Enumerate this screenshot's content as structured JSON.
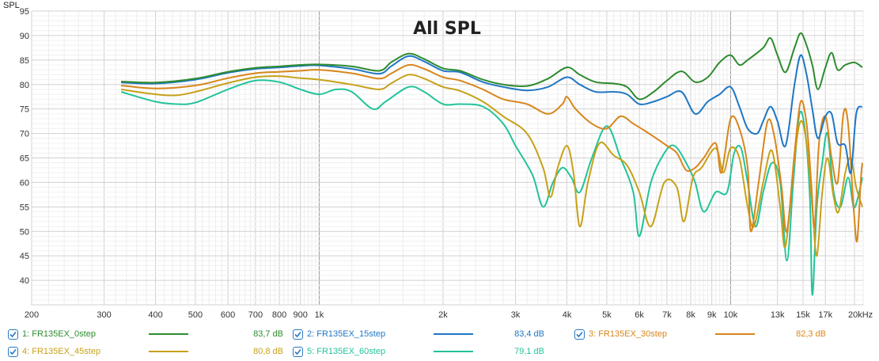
{
  "chart_data": {
    "type": "line",
    "title": "All SPL",
    "ylabel": "SPL",
    "xlabel": "",
    "xscale": "log",
    "xlim": [
      200,
      21000
    ],
    "ylim": [
      35,
      95
    ],
    "x_ticks": [
      {
        "value": 200,
        "label": "200"
      },
      {
        "value": 300,
        "label": "300"
      },
      {
        "value": 400,
        "label": "400"
      },
      {
        "value": 500,
        "label": "500"
      },
      {
        "value": 600,
        "label": "600"
      },
      {
        "value": 700,
        "label": "700"
      },
      {
        "value": 800,
        "label": "800"
      },
      {
        "value": 900,
        "label": "900"
      },
      {
        "value": 1000,
        "label": "1k"
      },
      {
        "value": 2000,
        "label": "2k"
      },
      {
        "value": 3000,
        "label": "3k"
      },
      {
        "value": 4000,
        "label": "4k"
      },
      {
        "value": 5000,
        "label": "5k"
      },
      {
        "value": 6000,
        "label": "6k"
      },
      {
        "value": 7000,
        "label": "7k"
      },
      {
        "value": 8000,
        "label": "8k"
      },
      {
        "value": 9000,
        "label": "9k"
      },
      {
        "value": 10000,
        "label": "10k"
      },
      {
        "value": 13000,
        "label": "13k"
      },
      {
        "value": 15000,
        "label": "15k"
      },
      {
        "value": 17000,
        "label": "17k"
      },
      {
        "value": 20000,
        "label": "20kHz"
      }
    ],
    "y_ticks": [
      40,
      45,
      50,
      55,
      60,
      65,
      70,
      75,
      80,
      85,
      90,
      95
    ],
    "series": [
      {
        "name": "1: FR135EX_0step",
        "color": "#2e8b2e",
        "value_label": "83,7 dB",
        "points": [
          [
            330,
            80.6
          ],
          [
            400,
            80.4
          ],
          [
            500,
            81.2
          ],
          [
            600,
            82.6
          ],
          [
            700,
            83.4
          ],
          [
            800,
            83.7
          ],
          [
            900,
            84.0
          ],
          [
            1000,
            84.1
          ],
          [
            1200,
            83.7
          ],
          [
            1400,
            82.8
          ],
          [
            1500,
            84.6
          ],
          [
            1650,
            86.3
          ],
          [
            1800,
            85.2
          ],
          [
            2000,
            83.3
          ],
          [
            2200,
            82.8
          ],
          [
            2500,
            81.0
          ],
          [
            2800,
            80.0
          ],
          [
            3200,
            79.7
          ],
          [
            3600,
            81.2
          ],
          [
            4000,
            83.5
          ],
          [
            4300,
            82.0
          ],
          [
            4700,
            80.5
          ],
          [
            5200,
            80.2
          ],
          [
            5600,
            79.5
          ],
          [
            6000,
            77.0
          ],
          [
            6500,
            78.5
          ],
          [
            7000,
            80.8
          ],
          [
            7600,
            82.7
          ],
          [
            8200,
            80.5
          ],
          [
            8800,
            81.5
          ],
          [
            9400,
            84.5
          ],
          [
            10000,
            86.0
          ],
          [
            10500,
            84.0
          ],
          [
            11000,
            85.0
          ],
          [
            12000,
            87.5
          ],
          [
            12500,
            89.5
          ],
          [
            13000,
            86.0
          ],
          [
            13600,
            82.5
          ],
          [
            14300,
            87.5
          ],
          [
            14800,
            90.5
          ],
          [
            15300,
            88.0
          ],
          [
            15800,
            84.0
          ],
          [
            16300,
            79.0
          ],
          [
            17000,
            83.5
          ],
          [
            17600,
            86.5
          ],
          [
            18200,
            83.0
          ],
          [
            19000,
            84.0
          ],
          [
            20000,
            84.5
          ],
          [
            21000,
            83.5
          ]
        ]
      },
      {
        "name": "2: FR135EX_15step",
        "color": "#1f77c4",
        "value_label": "83,4 dB",
        "points": [
          [
            330,
            80.4
          ],
          [
            400,
            80.2
          ],
          [
            500,
            81.0
          ],
          [
            600,
            82.4
          ],
          [
            700,
            83.2
          ],
          [
            800,
            83.5
          ],
          [
            900,
            83.8
          ],
          [
            1000,
            83.9
          ],
          [
            1200,
            83.2
          ],
          [
            1400,
            82.2
          ],
          [
            1500,
            83.8
          ],
          [
            1650,
            85.8
          ],
          [
            1800,
            84.7
          ],
          [
            2000,
            82.8
          ],
          [
            2200,
            82.5
          ],
          [
            2500,
            80.5
          ],
          [
            2800,
            79.5
          ],
          [
            3200,
            78.8
          ],
          [
            3600,
            79.5
          ],
          [
            4000,
            81.5
          ],
          [
            4300,
            80.0
          ],
          [
            4700,
            78.5
          ],
          [
            5200,
            78.5
          ],
          [
            5600,
            78.0
          ],
          [
            6000,
            76.0
          ],
          [
            6500,
            76.5
          ],
          [
            7000,
            77.5
          ],
          [
            7600,
            78.5
          ],
          [
            8200,
            74.0
          ],
          [
            8800,
            76.5
          ],
          [
            9400,
            78.0
          ],
          [
            10000,
            79.5
          ],
          [
            10500,
            75.5
          ],
          [
            11000,
            71.0
          ],
          [
            11600,
            70.0
          ],
          [
            12000,
            72.5
          ],
          [
            12500,
            75.5
          ],
          [
            13000,
            72.5
          ],
          [
            13600,
            67.5
          ],
          [
            14300,
            80.0
          ],
          [
            14800,
            86.0
          ],
          [
            15300,
            82.0
          ],
          [
            15800,
            75.0
          ],
          [
            16300,
            69.0
          ],
          [
            17000,
            73.5
          ],
          [
            17600,
            74.0
          ],
          [
            18200,
            68.0
          ],
          [
            19000,
            67.5
          ],
          [
            19600,
            62.0
          ],
          [
            20200,
            74.0
          ],
          [
            21000,
            75.5
          ]
        ]
      },
      {
        "name": "3: FR135EX_30step",
        "color": "#d8861b",
        "value_label": "82,3 dB",
        "points": [
          [
            330,
            79.8
          ],
          [
            400,
            79.2
          ],
          [
            500,
            79.8
          ],
          [
            600,
            81.3
          ],
          [
            700,
            82.3
          ],
          [
            800,
            82.6
          ],
          [
            900,
            82.8
          ],
          [
            1000,
            83.0
          ],
          [
            1200,
            82.3
          ],
          [
            1400,
            81.2
          ],
          [
            1500,
            82.3
          ],
          [
            1650,
            84.0
          ],
          [
            1800,
            83.2
          ],
          [
            2000,
            81.5
          ],
          [
            2200,
            80.8
          ],
          [
            2500,
            79.0
          ],
          [
            2800,
            77.0
          ],
          [
            3200,
            76.0
          ],
          [
            3600,
            74.0
          ],
          [
            3900,
            76.0
          ],
          [
            4000,
            77.5
          ],
          [
            4200,
            75.0
          ],
          [
            4600,
            72.0
          ],
          [
            5000,
            71.0
          ],
          [
            5400,
            73.5
          ],
          [
            5800,
            72.0
          ],
          [
            6200,
            70.5
          ],
          [
            6600,
            69.0
          ],
          [
            7000,
            67.5
          ],
          [
            7400,
            66.0
          ],
          [
            7800,
            62.5
          ],
          [
            8200,
            63.0
          ],
          [
            8600,
            65.0
          ],
          [
            9200,
            68.0
          ],
          [
            9500,
            62.0
          ],
          [
            10000,
            73.0
          ],
          [
            10500,
            71.0
          ],
          [
            11000,
            63.0
          ],
          [
            11200,
            50.0
          ],
          [
            11700,
            60.0
          ],
          [
            12300,
            72.5
          ],
          [
            12800,
            69.0
          ],
          [
            13300,
            59.0
          ],
          [
            13700,
            50.0
          ],
          [
            14300,
            66.0
          ],
          [
            14800,
            76.5
          ],
          [
            15300,
            72.0
          ],
          [
            15700,
            60.0
          ],
          [
            16000,
            51.0
          ],
          [
            16400,
            68.0
          ],
          [
            17000,
            73.5
          ],
          [
            17600,
            65.0
          ],
          [
            18200,
            60.0
          ],
          [
            18800,
            74.0
          ],
          [
            19300,
            72.0
          ],
          [
            19900,
            55.0
          ],
          [
            20300,
            48.0
          ],
          [
            20700,
            60.0
          ],
          [
            21000,
            64.0
          ]
        ]
      },
      {
        "name": "4: FR135EX_45step",
        "color": "#c7a118",
        "value_label": "80,8 dB",
        "points": [
          [
            330,
            79.0
          ],
          [
            400,
            78.0
          ],
          [
            450,
            77.8
          ],
          [
            500,
            78.5
          ],
          [
            600,
            80.3
          ],
          [
            700,
            81.5
          ],
          [
            800,
            81.7
          ],
          [
            900,
            81.3
          ],
          [
            1000,
            81.0
          ],
          [
            1200,
            80.0
          ],
          [
            1400,
            79.0
          ],
          [
            1500,
            80.3
          ],
          [
            1650,
            82.0
          ],
          [
            1800,
            81.2
          ],
          [
            2000,
            79.5
          ],
          [
            2200,
            78.7
          ],
          [
            2500,
            76.5
          ],
          [
            2800,
            73.5
          ],
          [
            3200,
            70.0
          ],
          [
            3500,
            63.0
          ],
          [
            3650,
            57.0
          ],
          [
            3800,
            63.0
          ],
          [
            4000,
            67.5
          ],
          [
            4150,
            62.0
          ],
          [
            4300,
            51.0
          ],
          [
            4500,
            60.0
          ],
          [
            4800,
            68.0
          ],
          [
            5200,
            65.5
          ],
          [
            5600,
            63.5
          ],
          [
            6000,
            58.0
          ],
          [
            6400,
            51.0
          ],
          [
            6900,
            60.0
          ],
          [
            7400,
            59.0
          ],
          [
            7700,
            52.0
          ],
          [
            8100,
            61.0
          ],
          [
            8500,
            63.0
          ],
          [
            9200,
            67.0
          ],
          [
            9600,
            62.0
          ],
          [
            10000,
            67.0
          ],
          [
            10500,
            65.0
          ],
          [
            11000,
            55.0
          ],
          [
            11400,
            51.0
          ],
          [
            12000,
            60.0
          ],
          [
            12600,
            66.5
          ],
          [
            13200,
            55.0
          ],
          [
            13600,
            47.0
          ],
          [
            14300,
            65.0
          ],
          [
            14800,
            72.5
          ],
          [
            15300,
            68.0
          ],
          [
            15800,
            55.0
          ],
          [
            16200,
            45.0
          ],
          [
            16700,
            58.0
          ],
          [
            17200,
            65.0
          ],
          [
            17800,
            57.0
          ],
          [
            18300,
            54.0
          ],
          [
            19000,
            62.0
          ],
          [
            19600,
            65.0
          ],
          [
            20200,
            59.0
          ],
          [
            21000,
            55.0
          ]
        ]
      },
      {
        "name": "5: FR135EX_60step",
        "color": "#22c39a",
        "value_label": "79,1 dB",
        "points": [
          [
            330,
            78.5
          ],
          [
            400,
            76.5
          ],
          [
            450,
            76.0
          ],
          [
            500,
            76.3
          ],
          [
            600,
            79.0
          ],
          [
            700,
            80.8
          ],
          [
            800,
            80.5
          ],
          [
            900,
            79.0
          ],
          [
            1000,
            78.0
          ],
          [
            1100,
            79.0
          ],
          [
            1200,
            78.5
          ],
          [
            1350,
            75.0
          ],
          [
            1450,
            76.5
          ],
          [
            1650,
            79.5
          ],
          [
            1800,
            78.5
          ],
          [
            2000,
            76.0
          ],
          [
            2200,
            76.0
          ],
          [
            2500,
            75.5
          ],
          [
            2800,
            72.0
          ],
          [
            3000,
            67.5
          ],
          [
            3300,
            61.5
          ],
          [
            3500,
            55.0
          ],
          [
            3700,
            60.0
          ],
          [
            3900,
            63.0
          ],
          [
            4100,
            61.0
          ],
          [
            4300,
            58.0
          ],
          [
            4600,
            65.0
          ],
          [
            5000,
            71.5
          ],
          [
            5400,
            65.0
          ],
          [
            5800,
            58.0
          ],
          [
            6000,
            49.0
          ],
          [
            6400,
            60.0
          ],
          [
            6900,
            66.0
          ],
          [
            7300,
            67.5
          ],
          [
            7800,
            64.0
          ],
          [
            8200,
            60.0
          ],
          [
            8600,
            54.0
          ],
          [
            9200,
            58.0
          ],
          [
            9800,
            58.0
          ],
          [
            10200,
            66.0
          ],
          [
            10600,
            67.0
          ],
          [
            11000,
            60.0
          ],
          [
            11500,
            51.0
          ],
          [
            12000,
            58.0
          ],
          [
            12600,
            64.0
          ],
          [
            13200,
            60.0
          ],
          [
            13700,
            44.0
          ],
          [
            14200,
            60.0
          ],
          [
            14700,
            74.0
          ],
          [
            15200,
            70.0
          ],
          [
            15600,
            56.0
          ],
          [
            15800,
            37.0
          ],
          [
            16200,
            55.0
          ],
          [
            16700,
            64.0
          ],
          [
            17200,
            70.0
          ],
          [
            17800,
            58.0
          ],
          [
            18500,
            55.0
          ],
          [
            19300,
            61.0
          ],
          [
            19900,
            55.0
          ],
          [
            20400,
            57.0
          ],
          [
            21000,
            61.0
          ]
        ]
      }
    ]
  },
  "legend": [
    {
      "name": "1: FR135EX_0step",
      "value": "83,7 dB",
      "color": "#2e8b2e"
    },
    {
      "name": "2: FR135EX_15step",
      "value": "83,4 dB",
      "color": "#1f77c4"
    },
    {
      "name": "3: FR135EX_30step",
      "value": "82,3 dB",
      "color": "#d8861b"
    },
    {
      "name": "4: FR135EX_45step",
      "value": "80,8 dB",
      "color": "#c7a118"
    },
    {
      "name": "5: FR135EX_60step",
      "value": "79,1 dB",
      "color": "#22c39a"
    }
  ]
}
